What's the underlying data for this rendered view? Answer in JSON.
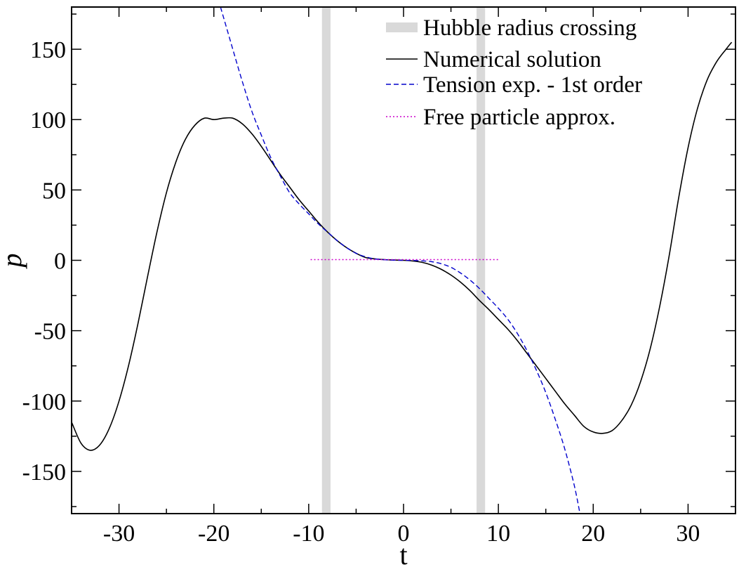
{
  "chart_data": {
    "type": "line",
    "title": "",
    "xlabel": "t",
    "ylabel": "p",
    "xlim": [
      -35,
      35
    ],
    "ylim": [
      -180,
      180
    ],
    "xticks": [
      -30,
      -20,
      -10,
      0,
      10,
      20,
      30
    ],
    "xtick_labels": [
      "-30",
      "-20",
      "-10",
      "0",
      "10",
      "20",
      "30"
    ],
    "yticks": [
      -150,
      -100,
      -50,
      0,
      50,
      100,
      150
    ],
    "ytick_labels": [
      "-150",
      "-100",
      "-50",
      "0",
      "50",
      "100",
      "150"
    ],
    "grid": false,
    "legend_position": "top-right",
    "bands": {
      "name": "Hubble radius crossing",
      "color": "#d9d9d9",
      "ranges": [
        [
          -8.6,
          -7.7
        ],
        [
          7.7,
          8.6
        ]
      ]
    },
    "series": [
      {
        "name": "Numerical solution",
        "color": "#000000",
        "style": "solid",
        "x": [
          -35,
          -34,
          -33,
          -32,
          -31,
          -30,
          -29,
          -28,
          -27,
          -26,
          -25,
          -24,
          -23,
          -22,
          -21,
          -20,
          -19,
          -18,
          -17,
          -16,
          -15,
          -14,
          -13,
          -12,
          -11,
          -10,
          -9,
          -8,
          -7,
          -6,
          -5,
          -4,
          -3,
          -2,
          -1,
          0,
          1,
          2,
          3,
          4,
          5,
          6,
          7,
          8,
          9,
          10,
          11,
          12,
          13,
          14,
          15,
          16,
          17,
          18,
          19,
          20,
          21,
          22,
          23,
          24,
          25,
          26,
          27,
          28,
          29,
          30,
          31,
          32,
          33,
          34,
          34.6
        ],
        "values": [
          -115,
          -130,
          -135,
          -131,
          -119,
          -100,
          -75,
          -45,
          -12,
          20,
          48,
          70,
          86,
          96,
          101,
          100,
          101,
          101,
          97,
          90,
          81,
          71,
          61,
          52,
          43,
          35,
          27,
          20,
          14,
          9,
          5,
          2,
          1,
          0.5,
          0.2,
          0,
          -0.5,
          -1.5,
          -3.5,
          -6.5,
          -10.5,
          -15.5,
          -21.5,
          -28.5,
          -35,
          -42,
          -49,
          -57,
          -66,
          -75,
          -84,
          -93,
          -102,
          -110,
          -118,
          -122,
          -123,
          -121,
          -114,
          -103,
          -86,
          -63,
          -33,
          3,
          44,
          80,
          108,
          128,
          141,
          150,
          155
        ]
      },
      {
        "name": "Tension exp. - 1st order",
        "color": "#0000cc",
        "style": "dashed",
        "x": [
          -19.3,
          -18,
          -17,
          -16,
          -15,
          -14,
          -13,
          -12,
          -11,
          -10,
          -9,
          -8,
          -7,
          -6,
          -5,
          -4,
          -3,
          -2,
          -1,
          0,
          1,
          2,
          3,
          4,
          5,
          6,
          7,
          8,
          9,
          10,
          11,
          12,
          13,
          14,
          15,
          16,
          17,
          18,
          18.6
        ],
        "values": [
          180,
          150,
          127,
          106,
          89,
          73,
          60,
          48,
          40,
          33,
          26,
          20,
          14,
          9,
          5,
          2.5,
          1,
          0.4,
          0.1,
          0,
          -0.1,
          -0.4,
          -1,
          -2.5,
          -5,
          -9,
          -14,
          -20,
          -27,
          -34,
          -42,
          -52,
          -64,
          -78,
          -94,
          -113,
          -134,
          -160,
          -180
        ]
      },
      {
        "name": "Free particle approx.",
        "color": "#cc00cc",
        "style": "dotted",
        "x": [
          -9.8,
          10
        ],
        "values": [
          0.5,
          0.5
        ]
      }
    ]
  }
}
